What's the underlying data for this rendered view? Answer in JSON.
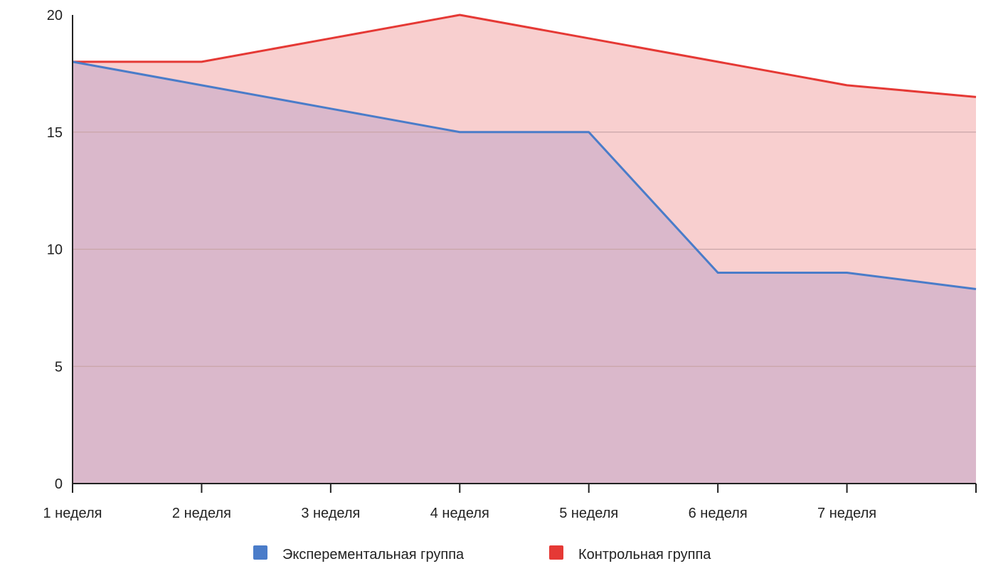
{
  "chart_data": {
    "type": "area",
    "title": "",
    "xlabel": "",
    "ylabel": "",
    "categories": [
      "1 неделя",
      "2 неделя",
      "3 неделя",
      "4 неделя",
      "5 неделя",
      "6 неделя",
      "7 неделя",
      ""
    ],
    "ylim": [
      0,
      20
    ],
    "yticks": [
      "0",
      "5",
      "10",
      "15",
      "20"
    ],
    "grid": true,
    "legend_position": "bottom",
    "series": [
      {
        "name": "Контрольная группа",
        "color": "#e53935",
        "fill": "#f8cfcf",
        "values": [
          18,
          18,
          19,
          20,
          19,
          18,
          17,
          16.5
        ]
      },
      {
        "name": "Эксперементальная группа",
        "color": "#4a7cc9",
        "fill": "#dab8cb",
        "values": [
          18,
          17,
          16,
          15,
          15,
          9,
          9,
          8.3
        ]
      }
    ],
    "legend_order": [
      1,
      0
    ]
  }
}
